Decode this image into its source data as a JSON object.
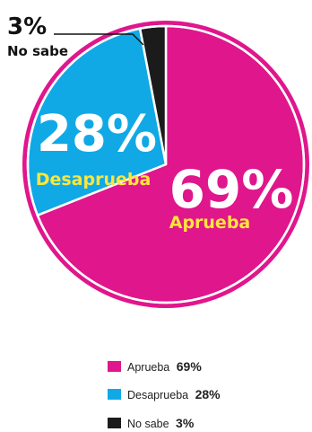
{
  "chart_data": {
    "type": "pie",
    "title": "",
    "slices": [
      {
        "label": "Aprueba",
        "value": 69,
        "display": "69%",
        "color": "#e0168c",
        "text_color": "#ffe63b"
      },
      {
        "label": "Desaprueba",
        "value": 28,
        "display": "28%",
        "color": "#10a9e6",
        "text_color": "#ffe63b"
      },
      {
        "label": "No sabe",
        "value": 3,
        "display": "3%",
        "color": "#1b1b1b",
        "text_color": "#111111"
      }
    ],
    "legend": {
      "position": "bottom",
      "items": [
        {
          "label": "Aprueba",
          "value": "69%",
          "color": "#e0168c"
        },
        {
          "label": "Desaprueba",
          "value": "28%",
          "color": "#10a9e6"
        },
        {
          "label": "No sabe",
          "value": "3%",
          "color": "#1b1b1b"
        }
      ]
    }
  }
}
